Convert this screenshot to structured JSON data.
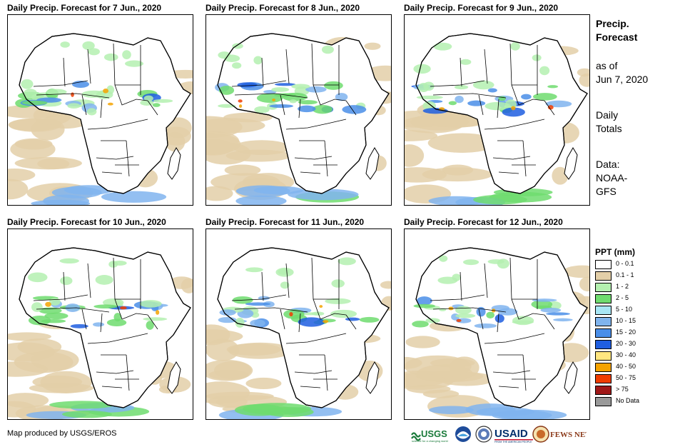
{
  "panels": [
    {
      "title": "Daily Precip. Forecast for 7 Jun., 2020"
    },
    {
      "title": "Daily Precip. Forecast for 8 Jun., 2020"
    },
    {
      "title": "Daily Precip. Forecast for 9 Jun., 2020"
    },
    {
      "title": "Daily Precip. Forecast for 10 Jun., 2020"
    },
    {
      "title": "Daily Precip. Forecast for 11 Jun., 2020"
    },
    {
      "title": "Daily Precip. Forecast for 12 Jun., 2020"
    }
  ],
  "side": {
    "heading_line1": "Precip.",
    "heading_line2": "Forecast",
    "asof_line1": "as of",
    "asof_line2": "Jun 7, 2020",
    "totals_line1": "Daily",
    "totals_line2": "Totals",
    "data_line1": "Data:",
    "data_line2": "NOAA-",
    "data_line3": "GFS"
  },
  "legend": {
    "title": "PPT (mm)",
    "items": [
      {
        "label": "0 - 0.1",
        "color": "#ffffff"
      },
      {
        "label": "0.1 - 1",
        "color": "#e3cfa8"
      },
      {
        "label": "1 - 2",
        "color": "#b4f0b0"
      },
      {
        "label": "2 - 5",
        "color": "#6fdc6f"
      },
      {
        "label": "5 - 10",
        "color": "#a8e6f5"
      },
      {
        "label": "10 - 15",
        "color": "#80b4ee"
      },
      {
        "label": "15 - 20",
        "color": "#4a8ee8"
      },
      {
        "label": "20 - 30",
        "color": "#1f5ee0"
      },
      {
        "label": "30 - 40",
        "color": "#ffe680"
      },
      {
        "label": "40 - 50",
        "color": "#f5a300"
      },
      {
        "label": "50 - 75",
        "color": "#f03c00"
      },
      {
        "label": "> 75",
        "color": "#a01818"
      },
      {
        "label": "No Data",
        "color": "#999999"
      }
    ]
  },
  "footer": {
    "credit": "Map produced by USGS/EROS"
  },
  "logos": {
    "usgs": "USGS",
    "usaid": "USAID",
    "fewsnet": "FEWS NET",
    "noaa": "NOAA"
  },
  "colors": {
    "land_outline": "#000000",
    "ocean": "#ffffff"
  }
}
